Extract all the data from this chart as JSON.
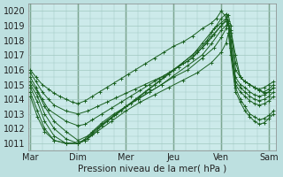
{
  "xlabel": "Pression niveau de la mer( hPa )",
  "ylim": [
    1010.5,
    1020.5
  ],
  "yticks": [
    1011,
    1012,
    1013,
    1014,
    1015,
    1016,
    1017,
    1018,
    1019,
    1020
  ],
  "xtick_labels": [
    "Mar",
    "Dim",
    "Mer",
    "Jeu",
    "Ven",
    "Sam"
  ],
  "xtick_positions": [
    0,
    1,
    2,
    3,
    4,
    5
  ],
  "bg_color": "#bde0e0",
  "plot_bg_color": "#cceaea",
  "grid_color": "#a0c8c0",
  "line_color": "#1a6020",
  "day_boundaries": [
    0,
    1,
    2,
    3,
    4,
    5
  ],
  "series": [
    {
      "x": [
        0.0,
        0.12,
        0.25,
        0.38,
        0.5,
        0.62,
        0.75,
        0.88,
        1.0,
        1.15,
        1.3,
        1.45,
        1.6,
        1.75,
        1.9,
        2.05,
        2.2,
        2.4,
        2.6,
        2.8,
        3.0,
        3.2,
        3.4,
        3.6,
        3.8,
        3.9,
        4.0,
        4.1,
        4.15,
        4.2,
        4.3,
        4.4,
        4.5,
        4.6,
        4.7,
        4.8,
        4.9,
        5.0,
        5.1
      ],
      "y": [
        1016.0,
        1015.5,
        1015.0,
        1014.7,
        1014.4,
        1014.2,
        1014.0,
        1013.8,
        1013.7,
        1013.9,
        1014.2,
        1014.5,
        1014.8,
        1015.1,
        1015.4,
        1015.7,
        1016.0,
        1016.4,
        1016.8,
        1017.2,
        1017.6,
        1017.9,
        1018.3,
        1018.8,
        1019.2,
        1019.5,
        1020.0,
        1019.6,
        1019.2,
        1018.7,
        1017.0,
        1015.5,
        1015.2,
        1015.0,
        1014.8,
        1014.7,
        1014.8,
        1015.0,
        1015.2
      ]
    },
    {
      "x": [
        0.0,
        0.12,
        0.25,
        0.38,
        0.5,
        0.75,
        1.0,
        1.2,
        1.4,
        1.6,
        1.8,
        2.0,
        2.2,
        2.4,
        2.6,
        2.8,
        3.0,
        3.2,
        3.4,
        3.6,
        3.8,
        3.9,
        4.0,
        4.1,
        4.15,
        4.2,
        4.3,
        4.4,
        4.5,
        4.6,
        4.7,
        4.8,
        4.9,
        5.0,
        5.1
      ],
      "y": [
        1015.8,
        1015.2,
        1014.5,
        1014.0,
        1013.6,
        1013.2,
        1013.0,
        1013.2,
        1013.5,
        1013.8,
        1014.1,
        1014.4,
        1014.7,
        1015.0,
        1015.3,
        1015.6,
        1016.0,
        1016.5,
        1017.0,
        1017.8,
        1018.6,
        1019.0,
        1019.5,
        1019.8,
        1019.2,
        1018.5,
        1016.5,
        1015.5,
        1015.2,
        1015.0,
        1014.8,
        1014.6,
        1014.5,
        1014.7,
        1015.0
      ]
    },
    {
      "x": [
        0.0,
        0.12,
        0.25,
        0.38,
        0.75,
        1.0,
        1.15,
        1.3,
        1.5,
        1.7,
        1.9,
        2.1,
        2.3,
        2.5,
        2.7,
        2.9,
        3.1,
        3.3,
        3.5,
        3.7,
        3.85,
        4.0,
        4.1,
        4.15,
        4.2,
        4.3,
        4.4,
        4.5,
        4.6,
        4.7,
        4.8,
        4.9,
        5.0,
        5.1
      ],
      "y": [
        1015.5,
        1014.8,
        1014.0,
        1013.3,
        1012.5,
        1012.2,
        1012.3,
        1012.6,
        1013.0,
        1013.4,
        1013.8,
        1014.2,
        1014.6,
        1015.0,
        1015.4,
        1015.8,
        1016.2,
        1016.6,
        1017.2,
        1017.8,
        1018.4,
        1019.0,
        1019.4,
        1019.7,
        1019.0,
        1016.0,
        1015.5,
        1015.2,
        1015.0,
        1014.8,
        1014.6,
        1014.4,
        1014.5,
        1014.8
      ]
    },
    {
      "x": [
        0.0,
        0.15,
        0.3,
        0.5,
        0.75,
        1.0,
        1.2,
        1.4,
        1.6,
        1.8,
        2.0,
        2.2,
        2.4,
        2.6,
        2.8,
        3.0,
        3.2,
        3.5,
        3.7,
        3.85,
        4.0,
        4.1,
        4.15,
        4.2,
        4.3,
        4.4,
        4.5,
        4.6,
        4.7,
        4.8,
        4.9,
        5.0,
        5.1
      ],
      "y": [
        1015.2,
        1014.5,
        1013.5,
        1012.5,
        1011.8,
        1011.2,
        1011.5,
        1012.0,
        1012.5,
        1013.0,
        1013.5,
        1014.0,
        1014.5,
        1015.0,
        1015.5,
        1016.0,
        1016.5,
        1017.3,
        1018.0,
        1018.8,
        1019.2,
        1019.5,
        1019.0,
        1018.0,
        1015.5,
        1015.0,
        1014.8,
        1014.5,
        1014.3,
        1014.2,
        1014.3,
        1014.5,
        1014.8
      ]
    },
    {
      "x": [
        0.0,
        0.15,
        0.3,
        0.5,
        0.75,
        1.0,
        1.15,
        1.3,
        1.5,
        1.7,
        1.9,
        2.1,
        2.3,
        2.5,
        2.7,
        2.9,
        3.1,
        3.4,
        3.6,
        3.8,
        4.0,
        4.1,
        4.15,
        4.2,
        4.3,
        4.4,
        4.5,
        4.6,
        4.7,
        4.8,
        4.9,
        5.0,
        5.1
      ],
      "y": [
        1015.0,
        1014.2,
        1013.0,
        1012.0,
        1011.3,
        1011.0,
        1011.2,
        1011.6,
        1012.2,
        1012.7,
        1013.2,
        1013.7,
        1014.2,
        1014.7,
        1015.2,
        1015.7,
        1016.2,
        1016.8,
        1017.5,
        1018.3,
        1019.0,
        1019.3,
        1019.0,
        1017.5,
        1015.2,
        1014.8,
        1014.5,
        1014.2,
        1014.0,
        1013.9,
        1014.0,
        1014.2,
        1014.5
      ]
    },
    {
      "x": [
        0.0,
        0.15,
        0.3,
        0.5,
        0.75,
        1.0,
        1.15,
        1.3,
        1.5,
        1.75,
        2.0,
        2.25,
        2.5,
        2.75,
        3.0,
        3.3,
        3.6,
        3.8,
        4.0,
        4.1,
        4.15,
        4.2,
        4.3,
        4.4,
        4.5,
        4.6,
        4.7,
        4.8,
        4.9,
        5.0,
        5.1
      ],
      "y": [
        1014.8,
        1013.8,
        1012.5,
        1011.5,
        1011.0,
        1011.0,
        1011.3,
        1011.8,
        1012.4,
        1013.0,
        1013.5,
        1014.0,
        1014.5,
        1015.0,
        1015.6,
        1016.3,
        1017.0,
        1017.8,
        1018.7,
        1019.0,
        1019.3,
        1018.0,
        1015.0,
        1014.5,
        1014.2,
        1013.9,
        1013.7,
        1013.6,
        1013.7,
        1013.9,
        1014.2
      ]
    },
    {
      "x": [
        0.0,
        0.15,
        0.3,
        0.5,
        0.75,
        1.0,
        1.15,
        1.3,
        1.5,
        1.75,
        2.0,
        2.25,
        2.5,
        2.75,
        3.0,
        3.3,
        3.6,
        3.85,
        4.0,
        4.1,
        4.15,
        4.2,
        4.3,
        4.4,
        4.5,
        4.6,
        4.7,
        4.8,
        4.9,
        5.0,
        5.1
      ],
      "y": [
        1014.5,
        1013.2,
        1012.0,
        1011.2,
        1011.0,
        1011.0,
        1011.2,
        1011.7,
        1012.3,
        1012.9,
        1013.5,
        1014.0,
        1014.5,
        1015.0,
        1015.5,
        1016.0,
        1016.8,
        1017.5,
        1018.2,
        1018.8,
        1019.2,
        1017.5,
        1014.8,
        1014.0,
        1013.5,
        1013.0,
        1012.8,
        1012.6,
        1012.7,
        1012.9,
        1013.2
      ]
    },
    {
      "x": [
        0.0,
        0.15,
        0.3,
        0.5,
        0.75,
        1.0,
        1.2,
        1.4,
        1.7,
        2.0,
        2.3,
        2.6,
        2.9,
        3.2,
        3.5,
        3.8,
        4.0,
        4.1,
        4.15,
        4.2,
        4.3,
        4.4,
        4.5,
        4.6,
        4.7,
        4.8,
        4.9,
        5.0,
        5.1
      ],
      "y": [
        1014.2,
        1012.8,
        1011.8,
        1011.2,
        1011.0,
        1011.0,
        1011.3,
        1011.8,
        1012.5,
        1013.2,
        1013.8,
        1014.3,
        1014.8,
        1015.3,
        1015.8,
        1016.5,
        1017.2,
        1017.8,
        1018.5,
        1017.0,
        1014.5,
        1013.8,
        1013.2,
        1012.8,
        1012.5,
        1012.3,
        1012.4,
        1012.7,
        1013.0
      ]
    }
  ]
}
